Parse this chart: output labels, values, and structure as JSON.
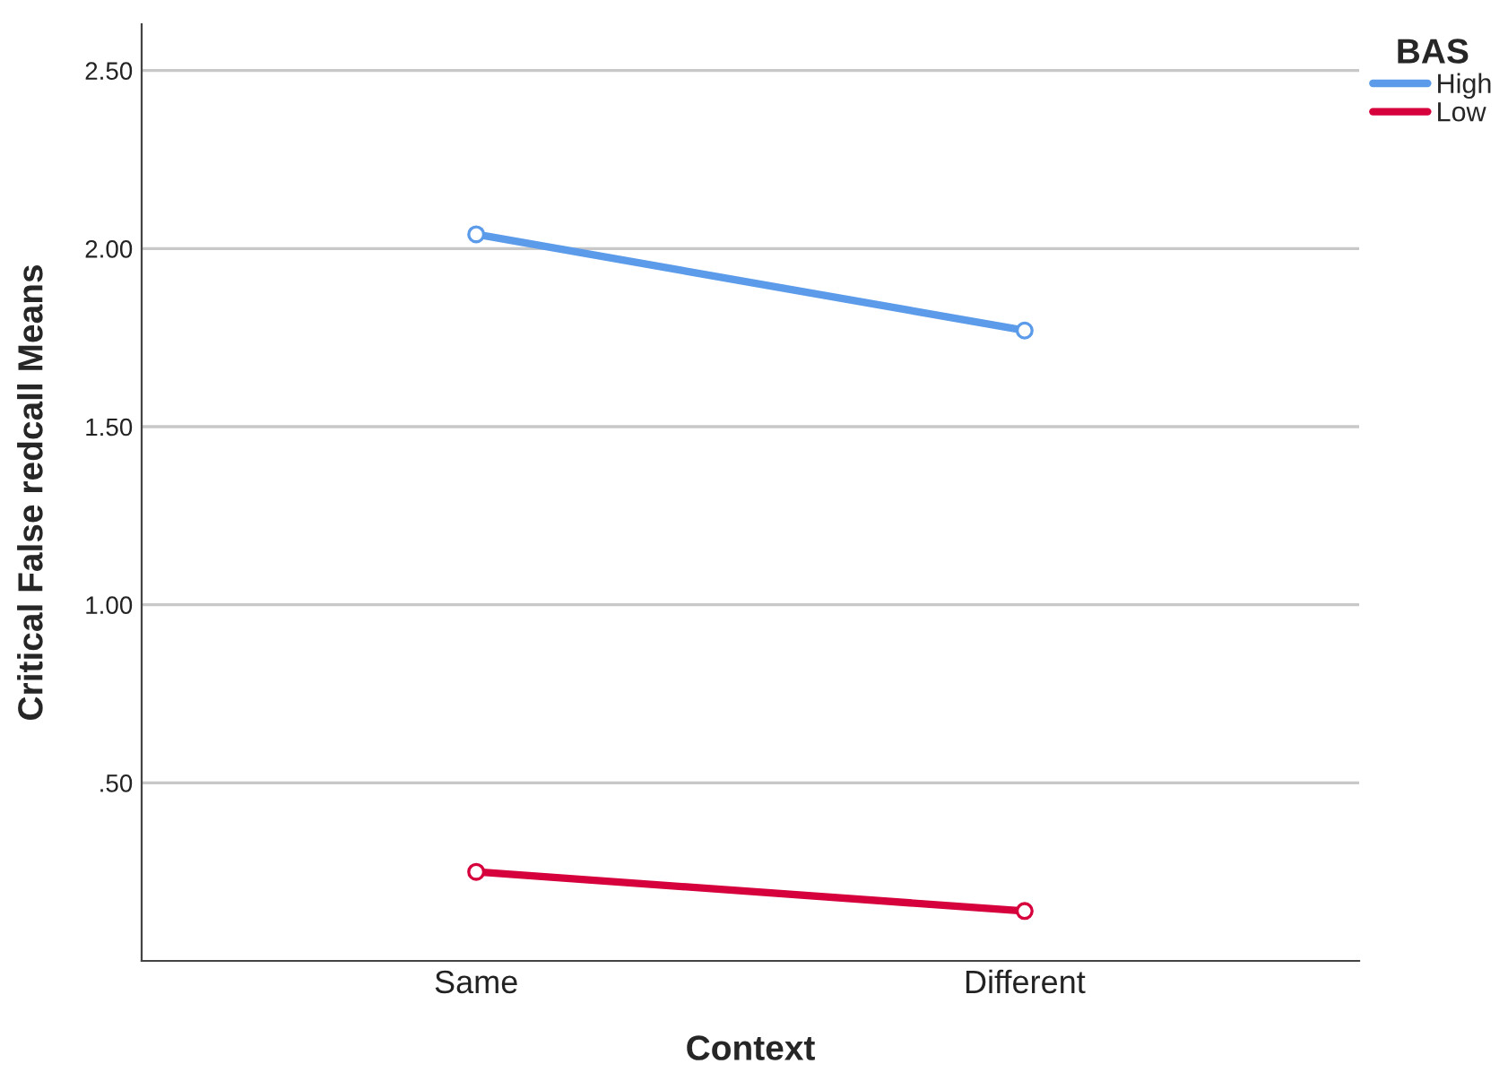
{
  "chart_data": {
    "type": "line",
    "xlabel": "Context",
    "ylabel": "Critical False redcall Means",
    "legend_title": "BAS",
    "categories": [
      "Same",
      "Different"
    ],
    "series": [
      {
        "name": "High",
        "color": "#5b9bea",
        "values": [
          2.04,
          1.77
        ]
      },
      {
        "name": "Low",
        "color": "#d6003c",
        "values": [
          0.25,
          0.14
        ]
      }
    ],
    "ylim": [
      0,
      2.63
    ],
    "yticks": [
      {
        "value": 0.5,
        "label": ".50"
      },
      {
        "value": 1.0,
        "label": "1.00"
      },
      {
        "value": 1.5,
        "label": "1.50"
      },
      {
        "value": 2.0,
        "label": "2.00"
      },
      {
        "value": 2.5,
        "label": "2.50"
      }
    ],
    "grid": "y",
    "legend": "top right",
    "marker": "circle",
    "line_style": "solid"
  }
}
